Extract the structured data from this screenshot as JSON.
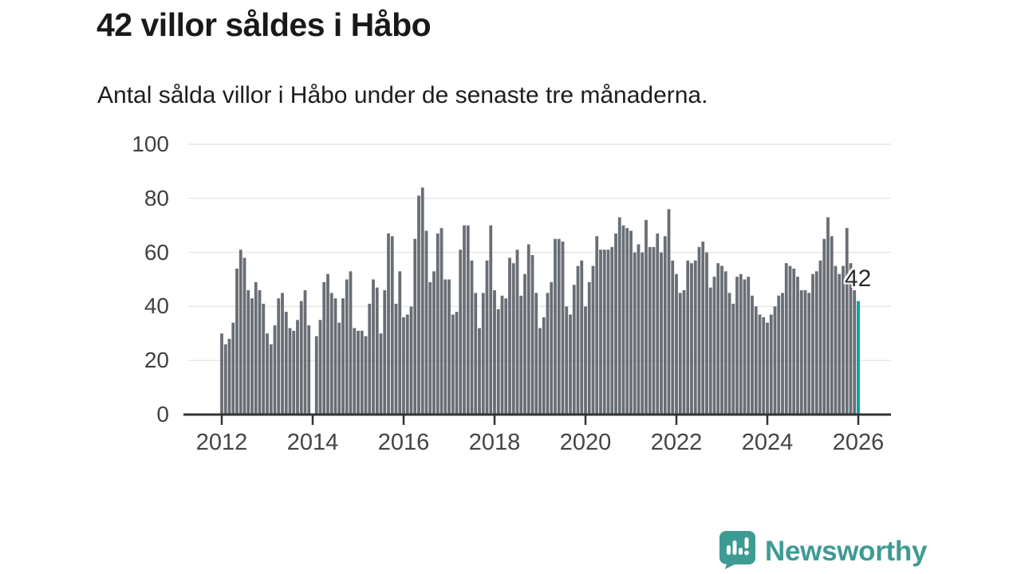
{
  "header": {
    "title": "42 villor såldes i Håbo",
    "subtitle": "Antal sålda villor i Håbo under de senaste tre månaderna."
  },
  "chart_data": {
    "type": "bar",
    "title": "42 villor såldes i Håbo",
    "subtitle": "Antal sålda villor i Håbo under de senaste tre månaderna.",
    "frequency": "monthly",
    "x_start": "2012-01",
    "x_end": "2026-01",
    "xlabel": "",
    "ylabel": "",
    "ylim": [
      0,
      100
    ],
    "y_ticks": [
      0,
      20,
      40,
      60,
      80,
      100
    ],
    "x_tick_labels": [
      "2012",
      "2014",
      "2016",
      "2018",
      "2020",
      "2022",
      "2024",
      "2026"
    ],
    "x_tick_month_index": [
      0,
      24,
      48,
      72,
      96,
      120,
      144,
      168
    ],
    "grid": "horizontal",
    "legend": "none",
    "note": "value 0 at 2014-01 is a missing-data gap",
    "values": [
      30,
      26,
      28,
      34,
      54,
      61,
      58,
      46,
      43,
      49,
      46,
      41,
      30,
      26,
      33,
      43,
      45,
      38,
      32,
      31,
      35,
      42,
      46,
      33,
      0,
      29,
      35,
      49,
      52,
      45,
      43,
      34,
      43,
      50,
      53,
      32,
      31,
      31,
      29,
      41,
      50,
      47,
      30,
      46,
      67,
      66,
      41,
      53,
      36,
      37,
      40,
      65,
      81,
      84,
      68,
      49,
      53,
      67,
      69,
      50,
      50,
      37,
      38,
      61,
      70,
      70,
      57,
      45,
      32,
      45,
      57,
      70,
      46,
      39,
      44,
      43,
      58,
      56,
      61,
      44,
      52,
      63,
      59,
      45,
      32,
      36,
      45,
      49,
      65,
      65,
      64,
      40,
      37,
      48,
      55,
      57,
      40,
      49,
      55,
      66,
      61,
      61,
      61,
      62,
      67,
      73,
      70,
      69,
      68,
      60,
      63,
      60,
      72,
      62,
      62,
      67,
      60,
      66,
      76,
      57,
      52,
      45,
      46,
      57,
      56,
      57,
      62,
      64,
      60,
      47,
      51,
      56,
      55,
      53,
      45,
      41,
      51,
      52,
      50,
      51,
      44,
      40,
      37,
      36,
      34,
      37,
      40,
      44,
      45,
      56,
      55,
      54,
      51,
      46,
      46,
      45,
      52,
      53,
      57,
      65,
      73,
      66,
      55,
      52,
      55,
      69,
      56,
      46,
      42
    ],
    "highlight": {
      "month": "2026-01",
      "index": 168,
      "value": 42,
      "label": "42",
      "color": "#00a29d"
    },
    "colors": {
      "bar": "#696e75",
      "highlight_bar": "#00a29d",
      "gridline": "#e4e4e4",
      "axis_line": "#333333",
      "tick_label": "#454545",
      "annotation_text": "#2b2b2b"
    }
  },
  "footer": {
    "brand": "Newsworthy",
    "logo_icon": "newsworthy-speech-bubble-chart-icon",
    "brand_color": "#3e9b93"
  }
}
